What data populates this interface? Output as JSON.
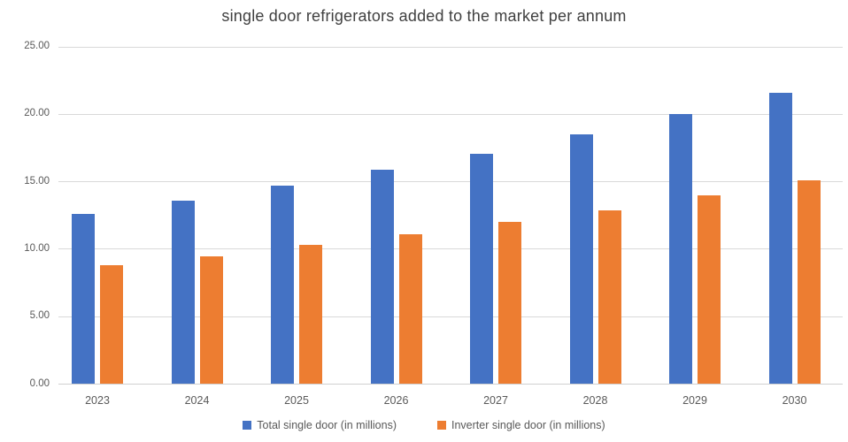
{
  "title": "single door refrigerators added to the market per annum",
  "chart_data": {
    "type": "bar",
    "title": "single door refrigerators added to the market per annum",
    "categories": [
      "2023",
      "2024",
      "2025",
      "2026",
      "2027",
      "2028",
      "2029",
      "2030"
    ],
    "series": [
      {
        "name": "Total single door (in millions)",
        "color": "#4472C4",
        "values": [
          12.6,
          13.6,
          14.7,
          15.9,
          17.1,
          18.5,
          20.0,
          21.6
        ]
      },
      {
        "name": "Inverter single door (in millions)",
        "color": "#ED7D31",
        "values": [
          8.8,
          9.5,
          10.3,
          11.1,
          12.0,
          12.9,
          14.0,
          15.1
        ]
      }
    ],
    "xlabel": "",
    "ylabel": "",
    "ylim": [
      0,
      25
    ],
    "ytick_step": 5,
    "ytick_labels": [
      "0.00",
      "5.00",
      "10.00",
      "15.00",
      "20.00",
      "25.00"
    ],
    "grid": true,
    "legend_position": "bottom"
  },
  "colors": {
    "background": "#FFFFFF",
    "gridline": "#D9D9D9",
    "title_text": "#404040",
    "axis_text": "#595959",
    "series_total": "#4472C4",
    "series_inverter": "#ED7D31"
  }
}
